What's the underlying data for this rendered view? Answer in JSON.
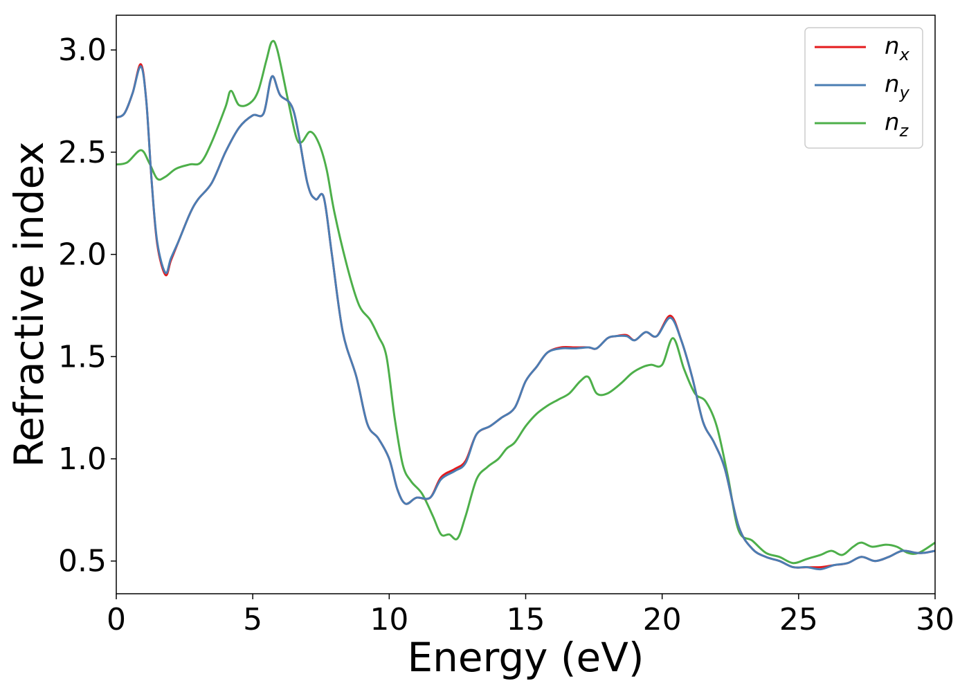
{
  "chart_data": {
    "type": "line",
    "title": "",
    "xlabel": "Energy (eV)",
    "ylabel": "Refractive index",
    "xlim": [
      0,
      30
    ],
    "ylim": [
      0.34,
      3.17
    ],
    "xticks": [
      0,
      5,
      10,
      15,
      20,
      25,
      30
    ],
    "xtick_labels": [
      "0",
      "5",
      "10",
      "15",
      "20",
      "25",
      "30"
    ],
    "yticks": [
      0.5,
      1.0,
      1.5,
      2.0,
      2.5,
      3.0
    ],
    "ytick_labels": [
      "0.5",
      "1.0",
      "1.5",
      "2.0",
      "2.5",
      "3.0"
    ],
    "grid": false,
    "legend_position": "top-right",
    "series": [
      {
        "name": "n",
        "subscript": "x",
        "color": "#e41a1c",
        "points": [
          [
            0,
            2.67
          ],
          [
            0.3,
            2.69
          ],
          [
            0.6,
            2.79
          ],
          [
            0.9,
            2.93
          ],
          [
            1.1,
            2.75
          ],
          [
            1.3,
            2.35
          ],
          [
            1.5,
            2.05
          ],
          [
            1.8,
            1.9
          ],
          [
            2.0,
            1.97
          ],
          [
            2.3,
            2.07
          ],
          [
            2.7,
            2.2
          ],
          [
            3.0,
            2.27
          ],
          [
            3.5,
            2.35
          ],
          [
            4.0,
            2.5
          ],
          [
            4.5,
            2.62
          ],
          [
            5.0,
            2.68
          ],
          [
            5.4,
            2.69
          ],
          [
            5.7,
            2.87
          ],
          [
            6.0,
            2.78
          ],
          [
            6.5,
            2.7
          ],
          [
            7.0,
            2.35
          ],
          [
            7.3,
            2.27
          ],
          [
            7.6,
            2.28
          ],
          [
            7.9,
            2.0
          ],
          [
            8.3,
            1.62
          ],
          [
            8.8,
            1.4
          ],
          [
            9.2,
            1.17
          ],
          [
            9.6,
            1.1
          ],
          [
            10.0,
            1.0
          ],
          [
            10.3,
            0.85
          ],
          [
            10.6,
            0.78
          ],
          [
            11.0,
            0.81
          ],
          [
            11.5,
            0.81
          ],
          [
            11.9,
            0.91
          ],
          [
            12.4,
            0.95
          ],
          [
            12.8,
            0.99
          ],
          [
            13.2,
            1.12
          ],
          [
            13.7,
            1.16
          ],
          [
            14.1,
            1.2
          ],
          [
            14.6,
            1.25
          ],
          [
            15.0,
            1.38
          ],
          [
            15.4,
            1.45
          ],
          [
            15.8,
            1.52
          ],
          [
            16.3,
            1.545
          ],
          [
            16.8,
            1.545
          ],
          [
            17.3,
            1.545
          ],
          [
            17.6,
            1.54
          ],
          [
            18.0,
            1.59
          ],
          [
            18.3,
            1.6
          ],
          [
            18.7,
            1.605
          ],
          [
            19.0,
            1.58
          ],
          [
            19.4,
            1.62
          ],
          [
            19.8,
            1.6
          ],
          [
            20.3,
            1.7
          ],
          [
            20.7,
            1.58
          ],
          [
            21.1,
            1.4
          ],
          [
            21.5,
            1.18
          ],
          [
            21.9,
            1.08
          ],
          [
            22.3,
            0.95
          ],
          [
            22.8,
            0.67
          ],
          [
            23.3,
            0.56
          ],
          [
            23.8,
            0.52
          ],
          [
            24.3,
            0.5
          ],
          [
            24.8,
            0.47
          ],
          [
            25.3,
            0.47
          ],
          [
            25.8,
            0.47
          ],
          [
            26.3,
            0.48
          ],
          [
            26.8,
            0.49
          ],
          [
            27.3,
            0.52
          ],
          [
            27.8,
            0.5
          ],
          [
            28.3,
            0.52
          ],
          [
            28.8,
            0.55
          ],
          [
            29.3,
            0.54
          ],
          [
            29.6,
            0.54
          ],
          [
            30.0,
            0.55
          ]
        ]
      },
      {
        "name": "n",
        "subscript": "y",
        "color": "#4a7db3",
        "points": [
          [
            0,
            2.67
          ],
          [
            0.3,
            2.69
          ],
          [
            0.6,
            2.79
          ],
          [
            0.9,
            2.92
          ],
          [
            1.1,
            2.75
          ],
          [
            1.3,
            2.35
          ],
          [
            1.5,
            2.06
          ],
          [
            1.8,
            1.91
          ],
          [
            2.0,
            1.98
          ],
          [
            2.3,
            2.07
          ],
          [
            2.7,
            2.2
          ],
          [
            3.0,
            2.27
          ],
          [
            3.5,
            2.35
          ],
          [
            4.0,
            2.5
          ],
          [
            4.5,
            2.62
          ],
          [
            5.0,
            2.68
          ],
          [
            5.4,
            2.69
          ],
          [
            5.7,
            2.87
          ],
          [
            6.0,
            2.78
          ],
          [
            6.5,
            2.7
          ],
          [
            7.0,
            2.35
          ],
          [
            7.3,
            2.27
          ],
          [
            7.6,
            2.28
          ],
          [
            7.9,
            2.0
          ],
          [
            8.3,
            1.62
          ],
          [
            8.8,
            1.4
          ],
          [
            9.2,
            1.17
          ],
          [
            9.6,
            1.1
          ],
          [
            10.0,
            1.0
          ],
          [
            10.3,
            0.85
          ],
          [
            10.6,
            0.78
          ],
          [
            11.0,
            0.81
          ],
          [
            11.5,
            0.81
          ],
          [
            11.9,
            0.9
          ],
          [
            12.4,
            0.94
          ],
          [
            12.8,
            0.98
          ],
          [
            13.2,
            1.12
          ],
          [
            13.7,
            1.16
          ],
          [
            14.1,
            1.2
          ],
          [
            14.6,
            1.25
          ],
          [
            15.0,
            1.38
          ],
          [
            15.4,
            1.45
          ],
          [
            15.8,
            1.52
          ],
          [
            16.3,
            1.54
          ],
          [
            16.8,
            1.54
          ],
          [
            17.3,
            1.545
          ],
          [
            17.6,
            1.54
          ],
          [
            18.0,
            1.59
          ],
          [
            18.3,
            1.6
          ],
          [
            18.7,
            1.6
          ],
          [
            19.0,
            1.58
          ],
          [
            19.4,
            1.62
          ],
          [
            19.8,
            1.6
          ],
          [
            20.3,
            1.69
          ],
          [
            20.7,
            1.58
          ],
          [
            21.1,
            1.4
          ],
          [
            21.5,
            1.18
          ],
          [
            21.9,
            1.08
          ],
          [
            22.3,
            0.95
          ],
          [
            22.8,
            0.67
          ],
          [
            23.3,
            0.56
          ],
          [
            23.8,
            0.52
          ],
          [
            24.3,
            0.5
          ],
          [
            24.8,
            0.47
          ],
          [
            25.3,
            0.47
          ],
          [
            25.8,
            0.46
          ],
          [
            26.3,
            0.48
          ],
          [
            26.8,
            0.49
          ],
          [
            27.3,
            0.52
          ],
          [
            27.8,
            0.5
          ],
          [
            28.3,
            0.52
          ],
          [
            28.8,
            0.55
          ],
          [
            29.3,
            0.54
          ],
          [
            29.6,
            0.54
          ],
          [
            30.0,
            0.55
          ]
        ]
      },
      {
        "name": "n",
        "subscript": "z",
        "color": "#4daf4a",
        "points": [
          [
            0,
            2.44
          ],
          [
            0.4,
            2.45
          ],
          [
            0.9,
            2.51
          ],
          [
            1.2,
            2.45
          ],
          [
            1.5,
            2.37
          ],
          [
            1.8,
            2.38
          ],
          [
            2.2,
            2.42
          ],
          [
            2.7,
            2.44
          ],
          [
            3.1,
            2.45
          ],
          [
            3.5,
            2.55
          ],
          [
            4.0,
            2.72
          ],
          [
            4.2,
            2.8
          ],
          [
            4.5,
            2.73
          ],
          [
            4.9,
            2.74
          ],
          [
            5.2,
            2.8
          ],
          [
            5.5,
            2.95
          ],
          [
            5.7,
            3.04
          ],
          [
            5.9,
            3.0
          ],
          [
            6.3,
            2.75
          ],
          [
            6.6,
            2.57
          ],
          [
            6.8,
            2.55
          ],
          [
            7.1,
            2.6
          ],
          [
            7.4,
            2.55
          ],
          [
            7.7,
            2.42
          ],
          [
            8.0,
            2.2
          ],
          [
            8.5,
            1.92
          ],
          [
            8.9,
            1.75
          ],
          [
            9.3,
            1.68
          ],
          [
            9.6,
            1.6
          ],
          [
            9.9,
            1.5
          ],
          [
            10.2,
            1.2
          ],
          [
            10.5,
            0.97
          ],
          [
            10.8,
            0.89
          ],
          [
            11.2,
            0.83
          ],
          [
            11.6,
            0.72
          ],
          [
            11.9,
            0.63
          ],
          [
            12.2,
            0.63
          ],
          [
            12.5,
            0.61
          ],
          [
            12.8,
            0.72
          ],
          [
            13.2,
            0.9
          ],
          [
            13.6,
            0.96
          ],
          [
            14.0,
            1.0
          ],
          [
            14.3,
            1.05
          ],
          [
            14.6,
            1.08
          ],
          [
            15.0,
            1.16
          ],
          [
            15.4,
            1.22
          ],
          [
            15.8,
            1.26
          ],
          [
            16.2,
            1.29
          ],
          [
            16.6,
            1.32
          ],
          [
            17.0,
            1.38
          ],
          [
            17.3,
            1.4
          ],
          [
            17.6,
            1.32
          ],
          [
            18.0,
            1.32
          ],
          [
            18.5,
            1.37
          ],
          [
            18.9,
            1.42
          ],
          [
            19.3,
            1.45
          ],
          [
            19.6,
            1.46
          ],
          [
            20.0,
            1.46
          ],
          [
            20.4,
            1.59
          ],
          [
            20.8,
            1.44
          ],
          [
            21.2,
            1.32
          ],
          [
            21.6,
            1.28
          ],
          [
            22.0,
            1.16
          ],
          [
            22.4,
            0.92
          ],
          [
            22.8,
            0.65
          ],
          [
            23.3,
            0.6
          ],
          [
            23.8,
            0.54
          ],
          [
            24.3,
            0.52
          ],
          [
            24.8,
            0.49
          ],
          [
            25.3,
            0.51
          ],
          [
            25.8,
            0.53
          ],
          [
            26.2,
            0.55
          ],
          [
            26.6,
            0.53
          ],
          [
            27.0,
            0.57
          ],
          [
            27.3,
            0.59
          ],
          [
            27.7,
            0.57
          ],
          [
            28.2,
            0.58
          ],
          [
            28.6,
            0.57
          ],
          [
            29.0,
            0.54
          ],
          [
            29.4,
            0.54
          ],
          [
            30.0,
            0.59
          ]
        ]
      }
    ]
  }
}
